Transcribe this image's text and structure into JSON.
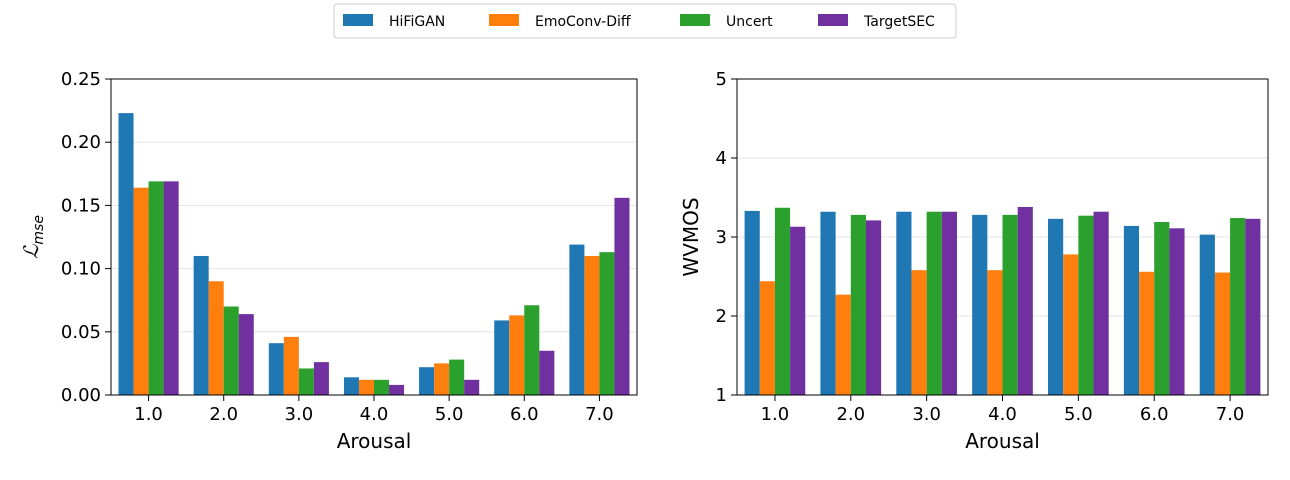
{
  "legend": {
    "items": [
      {
        "label": "HiFiGAN",
        "color": "#1f77b4"
      },
      {
        "label": "EmoConv-Diff",
        "color": "#ff7f0e"
      },
      {
        "label": "Uncert",
        "color": "#2ca02c"
      },
      {
        "label": "TargetSEC",
        "color": "#7030a0"
      }
    ]
  },
  "chart_data": [
    {
      "type": "bar",
      "xlabel": "Arousal",
      "ylabel": "ℒ",
      "ylabel_subscript": "mse",
      "categories": [
        "1.0",
        "2.0",
        "3.0",
        "4.0",
        "5.0",
        "6.0",
        "7.0"
      ],
      "ylim": [
        0,
        0.25
      ],
      "yticks": [
        "0.00",
        "0.05",
        "0.10",
        "0.15",
        "0.20",
        "0.25"
      ],
      "grid": true,
      "series": [
        {
          "name": "HiFiGAN",
          "values": [
            0.223,
            0.11,
            0.041,
            0.014,
            0.022,
            0.059,
            0.119
          ]
        },
        {
          "name": "EmoConv-Diff",
          "values": [
            0.164,
            0.09,
            0.046,
            0.012,
            0.025,
            0.063,
            0.11
          ]
        },
        {
          "name": "Uncert",
          "values": [
            0.169,
            0.07,
            0.021,
            0.012,
            0.028,
            0.071,
            0.113
          ]
        },
        {
          "name": "TargetSEC",
          "values": [
            0.169,
            0.064,
            0.026,
            0.008,
            0.012,
            0.035,
            0.156
          ]
        }
      ]
    },
    {
      "type": "bar",
      "xlabel": "Arousal",
      "ylabel": "WVMOS",
      "categories": [
        "1.0",
        "2.0",
        "3.0",
        "4.0",
        "5.0",
        "6.0",
        "7.0"
      ],
      "ylim": [
        1,
        5
      ],
      "yticks": [
        "1",
        "2",
        "3",
        "4",
        "5"
      ],
      "grid": true,
      "series": [
        {
          "name": "HiFiGAN",
          "values": [
            3.33,
            3.32,
            3.32,
            3.28,
            3.23,
            3.14,
            3.03
          ]
        },
        {
          "name": "EmoConv-Diff",
          "values": [
            2.44,
            2.27,
            2.58,
            2.58,
            2.78,
            2.56,
            2.55
          ]
        },
        {
          "name": "Uncert",
          "values": [
            3.37,
            3.28,
            3.32,
            3.28,
            3.27,
            3.19,
            3.24
          ]
        },
        {
          "name": "TargetSEC",
          "values": [
            3.13,
            3.21,
            3.32,
            3.38,
            3.32,
            3.11,
            3.23
          ]
        }
      ]
    }
  ]
}
